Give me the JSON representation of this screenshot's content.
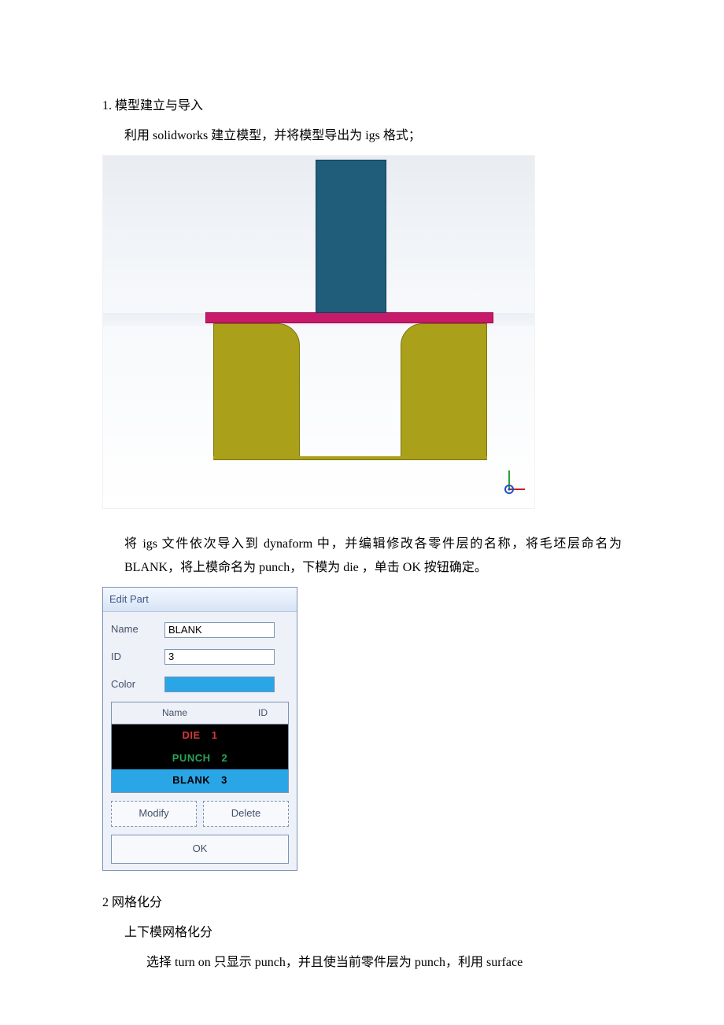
{
  "doc": {
    "section1_title": "1. 模型建立与导入",
    "section1_line1": "利用 solidworks   建立模型，并将模型导出为   igs 格式；",
    "section1_line2": "将 igs 文件依次导入到 dynaform 中，并编辑修改各零件层的名称，将毛坯层命名为 BLANK，将上模命名为 punch，下模为 die ，单击 OK 按钮确定。",
    "section2_title": "2 网格化分",
    "section2_line1": "上下模网格化分",
    "section2_line2": "选择 turn on  只显示 punch，并且使当前零件层为  punch，利用 surface"
  },
  "model": {
    "background_top": "#e9edf2",
    "background_bottom": "#ffffff",
    "punch_color": "#1f5d7a",
    "blank_color": "#c81a6a",
    "die_color": "#aaa01a",
    "axes": {
      "y_color": "#30a030",
      "x_color": "#c02020",
      "z_color": "#2050c0"
    }
  },
  "dlg": {
    "title": "Edit Part",
    "name_label": "Name",
    "name_value": "BLANK",
    "id_label": "ID",
    "id_value": "3",
    "color_label": "Color",
    "color_value": "#2aa5e6",
    "list_head_name": "Name",
    "list_head_id": "ID",
    "rows": [
      {
        "name": "DIE",
        "id": "1",
        "color": "#d23a3a",
        "selected": false
      },
      {
        "name": "PUNCH",
        "id": "2",
        "color": "#2aa35a",
        "selected": false
      },
      {
        "name": "BLANK",
        "id": "3",
        "color": "#000000",
        "selected": true
      }
    ],
    "btn_modify": "Modify",
    "btn_delete": "Delete",
    "btn_ok": "OK"
  }
}
